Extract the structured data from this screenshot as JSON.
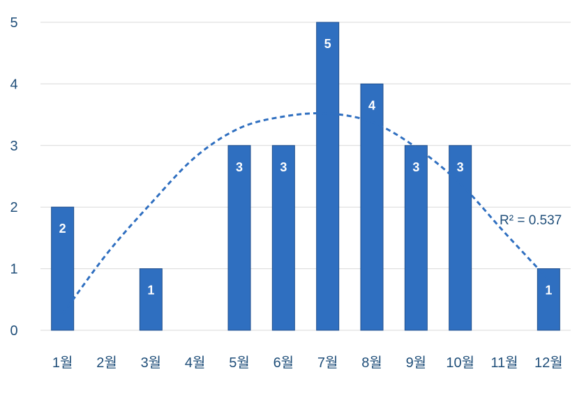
{
  "chart_data": {
    "type": "bar",
    "categories": [
      "1월",
      "2월",
      "3월",
      "4월",
      "5월",
      "6월",
      "7월",
      "8월",
      "9월",
      "10월",
      "11월",
      "12월"
    ],
    "values": [
      2,
      0,
      1,
      0,
      3,
      3,
      5,
      4,
      3,
      3,
      0,
      1
    ],
    "ylim": [
      0,
      5
    ],
    "yticks": [
      "0",
      "1",
      "2",
      "3",
      "4",
      "5"
    ],
    "grid": true,
    "legend": "none",
    "colors": {
      "bar": "#2f6fc0",
      "bar_edge": "#1f4e8c",
      "trend": "#2f6fc0",
      "axis_text": "#1f4e79",
      "grid": "#d9d9d9"
    },
    "trendline": {
      "type": "polynomial-2",
      "style": "dashed",
      "points": [
        [
          1,
          0.26
        ],
        [
          2,
          1.24
        ],
        [
          3,
          2.06
        ],
        [
          4,
          2.81
        ],
        [
          5,
          3.28
        ],
        [
          6,
          3.47
        ],
        [
          7,
          3.52
        ],
        [
          8,
          3.38
        ],
        [
          9,
          2.97
        ],
        [
          10,
          2.38
        ],
        [
          11,
          1.59
        ],
        [
          12,
          0.82
        ]
      ],
      "annotation": "R² = 0.537"
    }
  }
}
